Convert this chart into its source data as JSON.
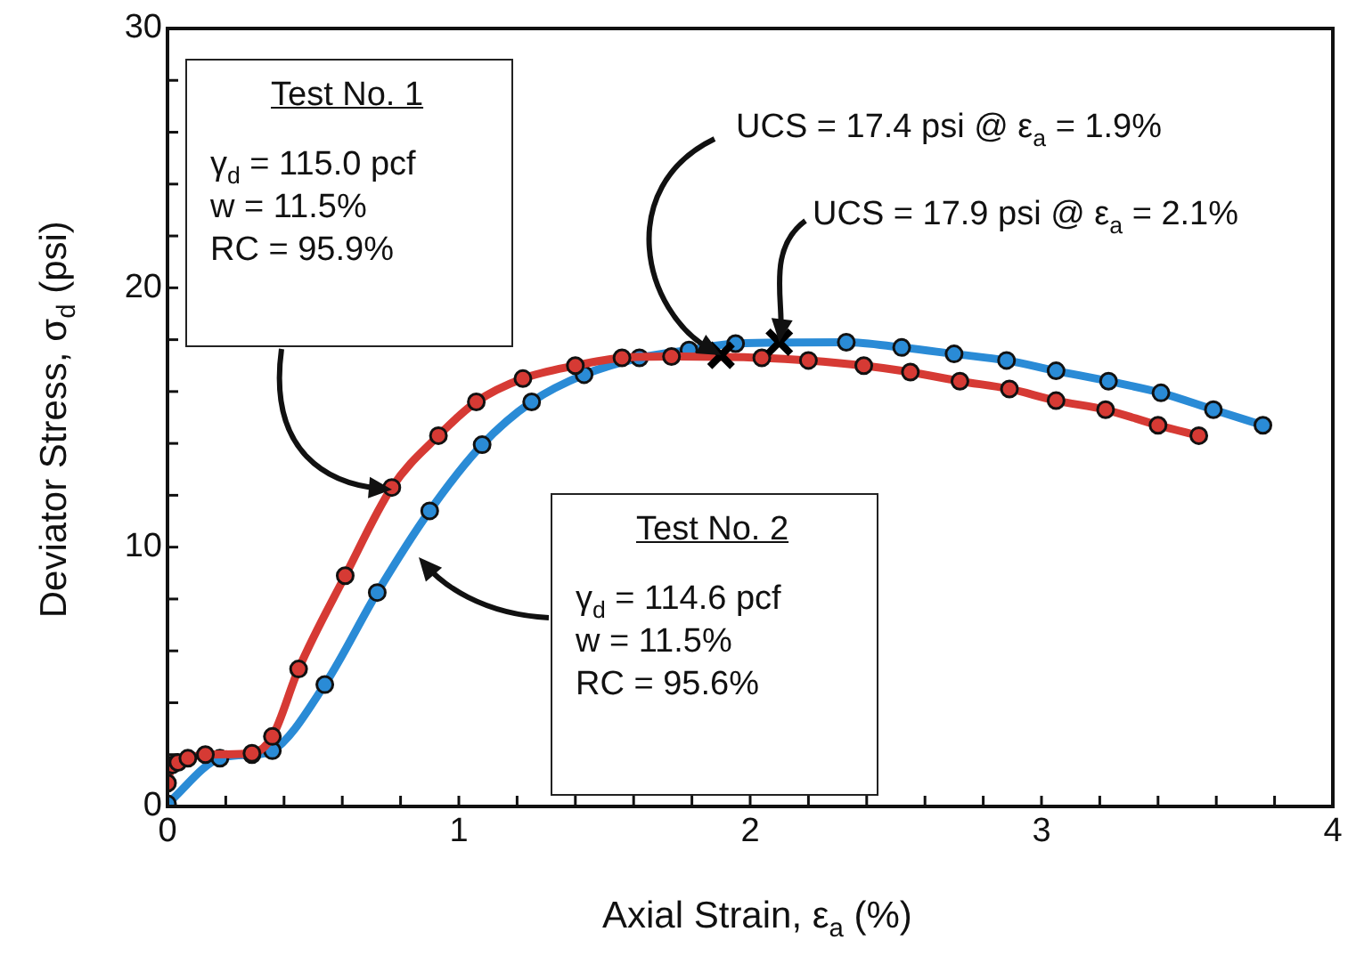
{
  "chart_data": {
    "type": "line",
    "xlabel": "Axial Strain, ε$_{a}$ (%)",
    "ylabel": "Deviator Stress, σ$_{d}$ (psi)",
    "xlim": [
      0,
      4
    ],
    "ylim": [
      0,
      30
    ],
    "xticks": [
      0,
      {
        "value": 0.2,
        "label": null
      },
      {
        "value": 0.4,
        "label": null
      },
      {
        "value": 0.6,
        "label": null
      },
      {
        "value": 0.8,
        "label": null
      },
      1,
      {
        "value": 1.2,
        "label": null
      },
      {
        "value": 1.4,
        "label": null
      },
      {
        "value": 1.6,
        "label": null
      },
      {
        "value": 1.8,
        "label": null
      },
      2,
      {
        "value": 2.2,
        "label": null
      },
      {
        "value": 2.4,
        "label": null
      },
      {
        "value": 2.6,
        "label": null
      },
      {
        "value": 2.8,
        "label": null
      },
      3,
      {
        "value": 3.2,
        "label": null
      },
      {
        "value": 3.4,
        "label": null
      },
      {
        "value": 3.6,
        "label": null
      },
      {
        "value": 3.8,
        "label": null
      },
      4
    ],
    "yticks": [
      0,
      {
        "value": 2,
        "label": null
      },
      {
        "value": 4,
        "label": null
      },
      {
        "value": 6,
        "label": null
      },
      {
        "value": 8,
        "label": null
      },
      10,
      {
        "value": 12,
        "label": null
      },
      {
        "value": 14,
        "label": null
      },
      {
        "value": 16,
        "label": null
      },
      {
        "value": 18,
        "label": null
      },
      20,
      {
        "value": 22,
        "label": null
      },
      {
        "value": 24,
        "label": null
      },
      {
        "value": 26,
        "label": null
      },
      {
        "value": 28,
        "label": null
      },
      30
    ],
    "grid": false,
    "legend": false,
    "marker": "circle",
    "line_style": "solid",
    "series": [
      {
        "color": "#d63a34",
        "x": [
          0,
          0.016,
          0.036,
          0.07,
          0.13,
          0.29,
          0.36,
          0.45,
          0.61,
          0.77,
          0.93,
          1.06,
          1.22,
          1.4,
          1.56,
          1.73,
          2.04,
          2.2,
          2.39,
          2.55,
          2.72,
          2.89,
          3.05,
          3.22,
          3.4,
          3.54
        ],
        "values": [
          0.9,
          1.6,
          1.7,
          1.86,
          2.0,
          2.05,
          2.7,
          5.3,
          8.9,
          12.3,
          14.3,
          15.6,
          16.5,
          17.0,
          17.3,
          17.35,
          17.3,
          17.2,
          17.0,
          16.75,
          16.4,
          16.1,
          15.65,
          15.3,
          14.7,
          14.3
        ]
      },
      {
        "color": "#2a8bd6",
        "x": [
          0,
          0.18,
          0.29,
          0.36,
          0.54,
          0.72,
          0.9,
          1.08,
          1.25,
          1.43,
          1.62,
          1.79,
          1.95,
          2.33,
          2.52,
          2.7,
          2.88,
          3.05,
          3.23,
          3.41,
          3.59,
          3.76
        ],
        "values": [
          0.1,
          1.86,
          2.0,
          2.15,
          4.7,
          8.25,
          11.4,
          13.95,
          15.6,
          16.65,
          17.3,
          17.6,
          17.85,
          17.9,
          17.7,
          17.45,
          17.2,
          16.8,
          16.4,
          15.95,
          15.3,
          14.7
        ]
      },
      {
        "type": "scatter",
        "marker": "cross",
        "color": "#000000",
        "x": [
          1.9,
          2.1
        ],
        "values": [
          17.4,
          17.9
        ]
      }
    ],
    "annotations": [
      "Test No. 1",
      "γ$_{d}$ = 115.0 pcf",
      "w = 11.5%",
      "RC = 95.9%",
      "Test No. 2",
      "γ$_{d}$ = 114.6 pcf",
      "w = 11.5%",
      "RC = 95.6%",
      {
        "text": "UCS = 17.4 psi @ ε$_{a}$ = 1.9%",
        "x": 1.9,
        "y": 17.4
      },
      {
        "text": "UCS = 17.9 psi @ ε$_{a}$ = 2.1%",
        "x": 2.1,
        "y": 17.9
      }
    ]
  }
}
